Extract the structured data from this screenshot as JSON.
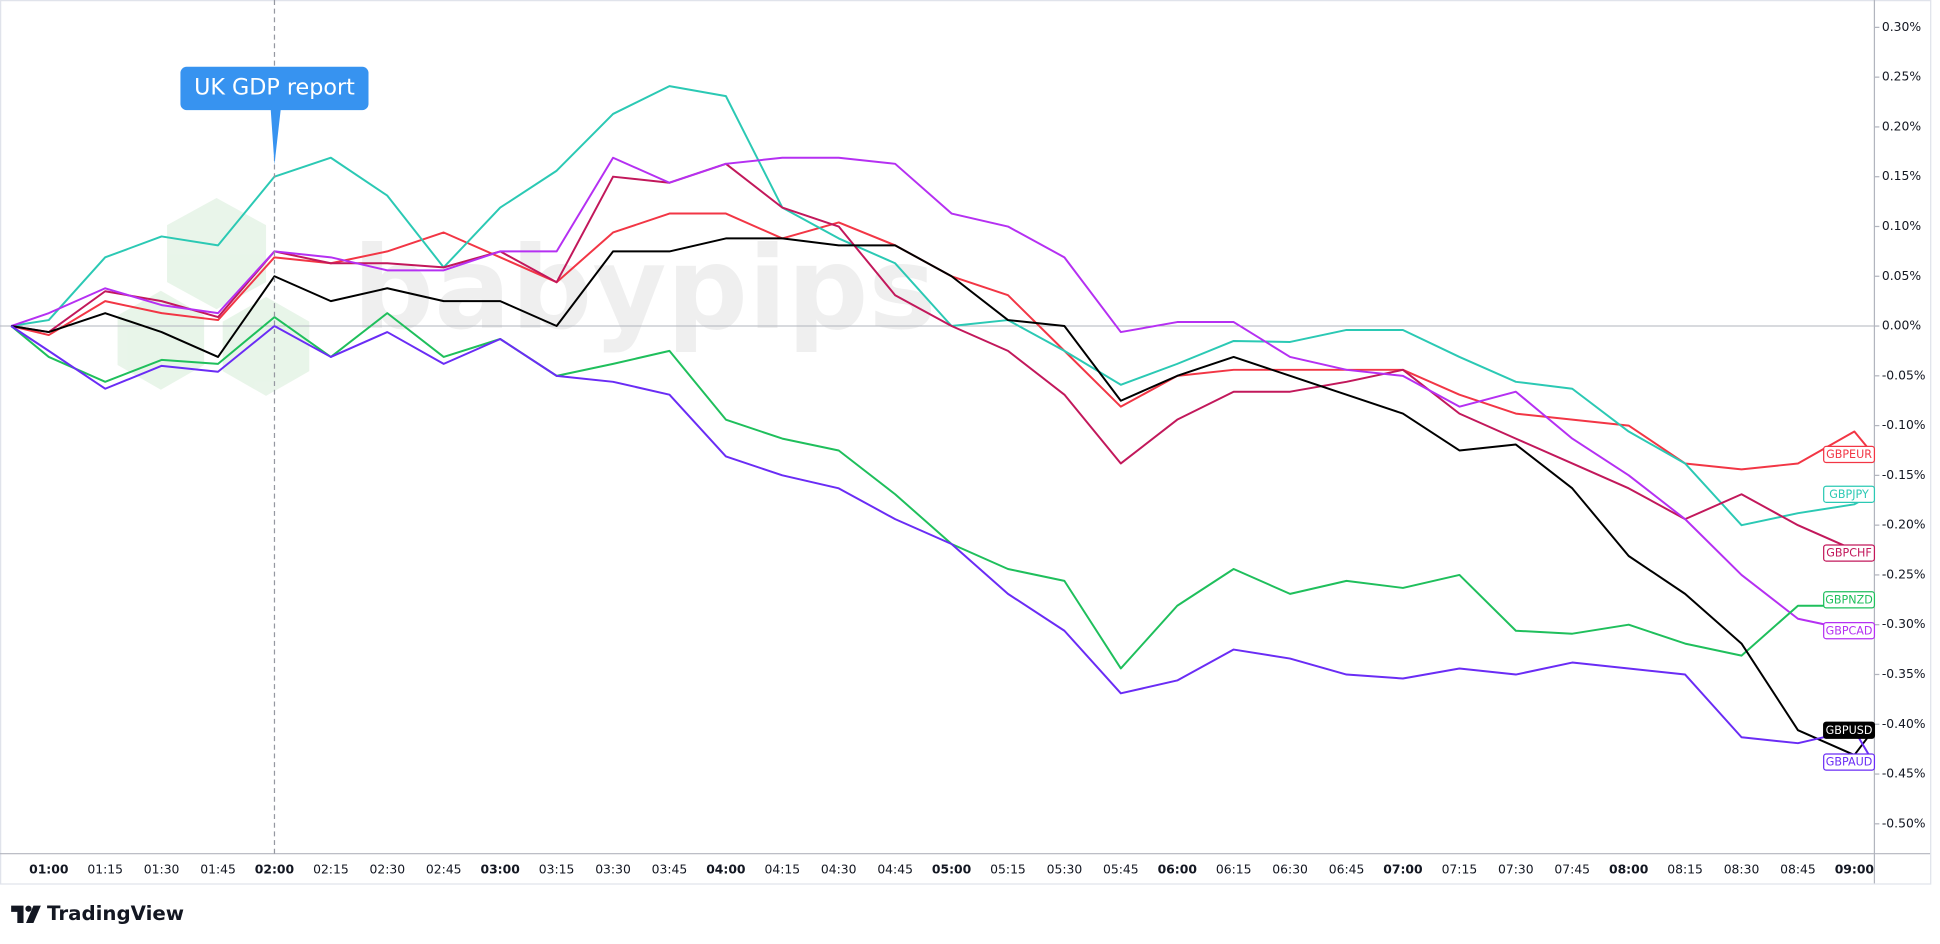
{
  "chart_data": {
    "type": "line",
    "annotation": {
      "text": "UK GDP report",
      "x": "02:00"
    },
    "watermark": "babypips",
    "footer": "TradingView",
    "x": [
      "00:50",
      "01:00",
      "01:15",
      "01:30",
      "01:45",
      "02:00",
      "02:15",
      "02:30",
      "02:45",
      "03:00",
      "03:15",
      "03:30",
      "03:45",
      "04:00",
      "04:15",
      "04:30",
      "04:45",
      "05:00",
      "05:15",
      "05:30",
      "05:45",
      "06:00",
      "06:15",
      "06:30",
      "06:45",
      "07:00",
      "07:15",
      "07:30",
      "07:45",
      "08:00",
      "08:15",
      "08:30",
      "08:45",
      "09:00",
      "09:05"
    ],
    "xlim": [
      "00:50",
      "09:05"
    ],
    "xticks": [
      "01:00",
      "01:15",
      "01:30",
      "01:45",
      "02:00",
      "02:15",
      "02:30",
      "02:45",
      "03:00",
      "03:15",
      "03:30",
      "03:45",
      "04:00",
      "04:15",
      "04:30",
      "04:45",
      "05:00",
      "05:15",
      "05:30",
      "05:45",
      "06:00",
      "06:15",
      "06:30",
      "06:45",
      "07:00",
      "07:15",
      "07:30",
      "07:45",
      "08:00",
      "08:15",
      "08:30",
      "08:45",
      "09:00"
    ],
    "ylim": [
      -0.53,
      0.3275
    ],
    "yticks": [
      {
        "value": 0.3,
        "label": "0.30%"
      },
      {
        "value": 0.25,
        "label": "0.25%"
      },
      {
        "value": 0.2,
        "label": "0.20%"
      },
      {
        "value": 0.15,
        "label": "0.15%"
      },
      {
        "value": 0.1,
        "label": "0.10%"
      },
      {
        "value": 0.05,
        "label": "0.05%"
      },
      {
        "value": 0,
        "label": "0.00%"
      },
      {
        "value": -0.05,
        "label": "-0.05%"
      },
      {
        "value": -0.1,
        "label": "-0.10%"
      },
      {
        "value": -0.15,
        "label": "-0.15%"
      },
      {
        "value": -0.2,
        "label": "-0.20%"
      },
      {
        "value": -0.25,
        "label": "-0.25%"
      },
      {
        "value": -0.3,
        "label": "-0.30%"
      },
      {
        "value": -0.35,
        "label": "-0.35%"
      },
      {
        "value": -0.4,
        "label": "-0.40%"
      },
      {
        "value": -0.45,
        "label": "-0.45%"
      },
      {
        "value": -0.5,
        "label": "-0.50%"
      }
    ],
    "series": [
      {
        "name": "GBPEUR",
        "color": "#f23645",
        "values": [
          0,
          -0.009,
          0.025,
          0.013,
          0.006,
          0.069,
          0.063,
          0.075,
          0.094,
          0.069,
          0.044,
          0.094,
          0.113,
          0.113,
          0.088,
          0.104,
          0.081,
          0.05,
          0.031,
          -0.025,
          -0.081,
          -0.05,
          -0.044,
          -0.044,
          -0.044,
          -0.044,
          -0.069,
          -0.088,
          -0.094,
          -0.1,
          -0.138,
          -0.144,
          -0.138,
          -0.106,
          -0.129
        ]
      },
      {
        "name": "GBPJPY",
        "color": "#2bc9b4",
        "values": [
          0,
          0.006,
          0.069,
          0.09,
          0.081,
          0.15,
          0.169,
          0.131,
          0.059,
          0.119,
          0.156,
          0.213,
          0.241,
          0.231,
          0.119,
          0.088,
          0.063,
          0,
          0.006,
          -0.025,
          -0.059,
          -0.038,
          -0.015,
          -0.016,
          -0.004,
          -0.004,
          -0.031,
          -0.056,
          -0.063,
          -0.106,
          -0.138,
          -0.2,
          -0.188,
          -0.179,
          -0.169
        ]
      },
      {
        "name": "GBPCHF",
        "color": "#c2185b",
        "values": [
          0,
          -0.006,
          0.035,
          0.025,
          0.009,
          0.075,
          0.063,
          0.063,
          0.059,
          0.075,
          0.044,
          0.15,
          0.144,
          0.163,
          0.119,
          0.1,
          0.031,
          0,
          -0.025,
          -0.069,
          -0.138,
          -0.094,
          -0.066,
          -0.066,
          -0.056,
          -0.044,
          -0.088,
          -0.113,
          -0.138,
          -0.163,
          -0.194,
          -0.169,
          -0.2,
          -0.225,
          -0.228
        ]
      },
      {
        "name": "GBPCAD",
        "color": "#b530f2",
        "values": [
          0,
          0.013,
          0.038,
          0.021,
          0.013,
          0.075,
          0.069,
          0.056,
          0.056,
          0.075,
          0.075,
          0.169,
          0.144,
          0.163,
          0.169,
          0.169,
          0.163,
          0.113,
          0.1,
          0.069,
          -0.006,
          0.004,
          0.004,
          -0.031,
          -0.044,
          -0.05,
          -0.081,
          -0.066,
          -0.113,
          -0.15,
          -0.194,
          -0.25,
          -0.294,
          -0.306,
          -0.306
        ]
      },
      {
        "name": "GBPNZD",
        "color": "#1fbf5c",
        "values": [
          0,
          -0.031,
          -0.056,
          -0.034,
          -0.038,
          0.009,
          -0.031,
          0.013,
          -0.031,
          -0.013,
          -0.05,
          -0.038,
          -0.025,
          -0.094,
          -0.113,
          -0.125,
          -0.169,
          -0.219,
          -0.244,
          -0.256,
          -0.344,
          -0.281,
          -0.244,
          -0.269,
          -0.256,
          -0.263,
          -0.25,
          -0.306,
          -0.309,
          -0.3,
          -0.319,
          -0.331,
          -0.281,
          -0.281,
          -0.275
        ]
      },
      {
        "name": "GBPUSD",
        "color": "#000000",
        "values": [
          0,
          -0.006,
          0.013,
          -0.006,
          -0.031,
          0.05,
          0.025,
          0.038,
          0.025,
          0.025,
          0,
          0.075,
          0.075,
          0.088,
          0.088,
          0.081,
          0.081,
          0.05,
          0.006,
          0,
          -0.075,
          -0.05,
          -0.031,
          -0.05,
          -0.069,
          -0.088,
          -0.125,
          -0.119,
          -0.163,
          -0.231,
          -0.269,
          -0.319,
          -0.406,
          -0.431,
          -0.406
        ]
      },
      {
        "name": "GBPAUD",
        "color": "#6a2cf5",
        "values": [
          0,
          -0.025,
          -0.063,
          -0.04,
          -0.046,
          0,
          -0.031,
          -0.006,
          -0.038,
          -0.013,
          -0.05,
          -0.056,
          -0.069,
          -0.131,
          -0.15,
          -0.163,
          -0.194,
          -0.219,
          -0.269,
          -0.306,
          -0.369,
          -0.356,
          -0.325,
          -0.334,
          -0.35,
          -0.354,
          -0.344,
          -0.35,
          -0.338,
          -0.344,
          -0.35,
          -0.413,
          -0.419,
          -0.406,
          -0.438
        ]
      }
    ]
  }
}
